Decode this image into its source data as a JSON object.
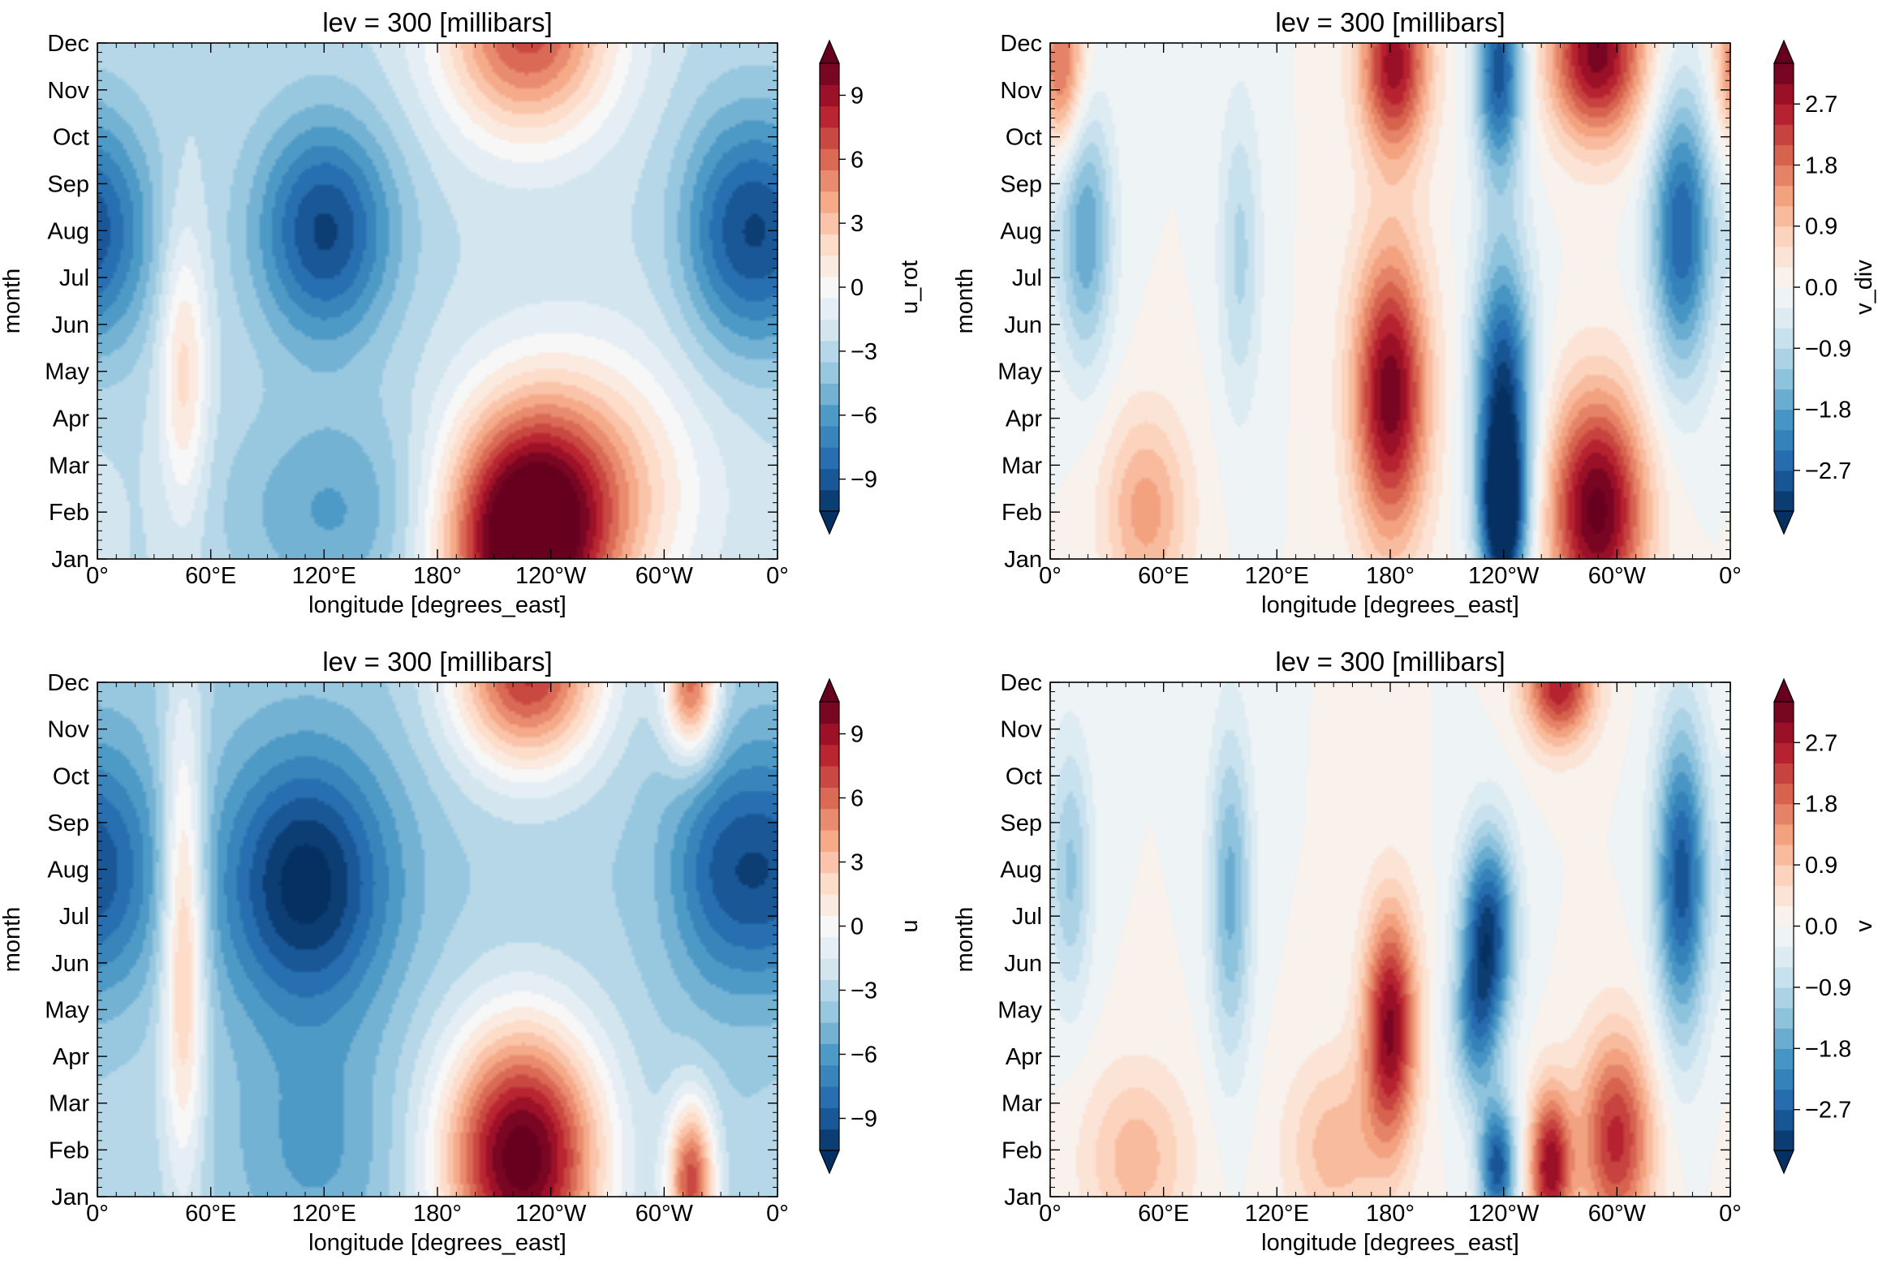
{
  "chart_data": [
    {
      "type": "heatmap",
      "subtype": "filled-contour",
      "title": "lev = 300 [millibars]",
      "xlabel": "longitude [degrees_east]",
      "ylabel": "month",
      "xticks": [
        "0°",
        "60°E",
        "120°E",
        "180°",
        "120°W",
        "60°W",
        "0°"
      ],
      "yticks": [
        "Jan",
        "Feb",
        "Mar",
        "Apr",
        "May",
        "Jun",
        "Jul",
        "Aug",
        "Sep",
        "Oct",
        "Nov",
        "Dec"
      ],
      "colorbar": {
        "label": "u_rot",
        "ticks": [
          "9",
          "6",
          "3",
          "0",
          "−3",
          "−6",
          "−9"
        ],
        "range": [
          -10.5,
          10.5
        ],
        "levels": 21,
        "cmap": "RdBu_r",
        "extend": "both"
      },
      "features": [
        {
          "lon": 120,
          "month": 8,
          "value": -10.5,
          "spread_lon": 26,
          "spread_month": 1.7
        },
        {
          "lon": 5,
          "month": 8,
          "value": -7.5,
          "spread_lon": 20,
          "spread_month": 1.8
        },
        {
          "lon": 335,
          "month": 8,
          "value": -8,
          "spread_lon": 20,
          "spread_month": 1.8
        },
        {
          "lon": 125,
          "month": 2,
          "value": -6,
          "spread_lon": 40,
          "spread_month": 1.6
        },
        {
          "lon": 45,
          "month": 5,
          "value": 2.5,
          "spread_lon": 9,
          "spread_month": 2.2
        },
        {
          "lon": 225,
          "month": 1.3,
          "value": 12.5,
          "spread_lon": 30,
          "spread_month": 1.9
        },
        {
          "lon": 260,
          "month": 2.5,
          "value": 4,
          "spread_lon": 40,
          "spread_month": 2
        },
        {
          "lon": 228,
          "month": 12.3,
          "value": 8,
          "spread_lon": 32,
          "spread_month": 1.6
        }
      ],
      "background": -2.5
    },
    {
      "type": "heatmap",
      "subtype": "filled-contour",
      "title": "lev = 300 [millibars]",
      "xlabel": "longitude [degrees_east]",
      "ylabel": "month",
      "xticks": [
        "0°",
        "60°E",
        "120°E",
        "180°",
        "120°W",
        "60°W",
        "0°"
      ],
      "yticks": [
        "Jan",
        "Feb",
        "Mar",
        "Apr",
        "May",
        "Jun",
        "Jul",
        "Aug",
        "Sep",
        "Oct",
        "Nov",
        "Dec"
      ],
      "colorbar": {
        "label": "v_div",
        "ticks": [
          "2.7",
          "1.8",
          "0.9",
          "0.0",
          "−0.9",
          "−1.8",
          "−2.7"
        ],
        "range": [
          -3.3,
          3.3
        ],
        "levels": 22,
        "cmap": "RdBu_r",
        "extend": "both"
      },
      "features": [
        {
          "lon": 180,
          "month": 4.5,
          "value": 3.6,
          "spread_lon": 14,
          "spread_month": 2.2
        },
        {
          "lon": 240,
          "month": 4.2,
          "value": -3.6,
          "spread_lon": 11,
          "spread_month": 2.4
        },
        {
          "lon": 238,
          "month": 11.5,
          "value": -3.2,
          "spread_lon": 9,
          "spread_month": 1.6
        },
        {
          "lon": 290,
          "month": 2,
          "value": 3.8,
          "spread_lon": 18,
          "spread_month": 1.8
        },
        {
          "lon": 290,
          "month": 11.8,
          "value": 3.5,
          "spread_lon": 18,
          "spread_month": 1.3
        },
        {
          "lon": 182,
          "month": 11.6,
          "value": 3.2,
          "spread_lon": 13,
          "spread_month": 1.4
        },
        {
          "lon": 335,
          "month": 8,
          "value": -3,
          "spread_lon": 12,
          "spread_month": 2.2
        },
        {
          "lon": 18,
          "month": 8,
          "value": -2,
          "spread_lon": 10,
          "spread_month": 2
        },
        {
          "lon": 100,
          "month": 7.5,
          "value": -1.1,
          "spread_lon": 8,
          "spread_month": 2.4
        },
        {
          "lon": 50,
          "month": 2,
          "value": 1.5,
          "spread_lon": 16,
          "spread_month": 1.5
        },
        {
          "lon": 5,
          "month": 11.5,
          "value": 2.2,
          "spread_lon": 9,
          "spread_month": 1.3
        },
        {
          "lon": 240,
          "month": 1.8,
          "value": -3.2,
          "spread_lon": 8,
          "spread_month": 1.2
        }
      ],
      "background": 0
    },
    {
      "type": "heatmap",
      "subtype": "filled-contour",
      "title": "lev = 300 [millibars]",
      "xlabel": "longitude [degrees_east]",
      "ylabel": "month",
      "xticks": [
        "0°",
        "60°E",
        "120°E",
        "180°",
        "120°W",
        "60°W",
        "0°"
      ],
      "yticks": [
        "Jan",
        "Feb",
        "Mar",
        "Apr",
        "May",
        "Jun",
        "Jul",
        "Aug",
        "Sep",
        "Oct",
        "Nov",
        "Dec"
      ],
      "colorbar": {
        "label": "u",
        "ticks": [
          "9",
          "6",
          "3",
          "0",
          "−3",
          "−6",
          "−9"
        ],
        "range": [
          -10.5,
          10.5
        ],
        "levels": 21,
        "cmap": "RdBu_r",
        "extend": "both"
      },
      "features": [
        {
          "lon": 110,
          "month": 7.7,
          "value": -12,
          "spread_lon": 32,
          "spread_month": 2
        },
        {
          "lon": 5,
          "month": 8,
          "value": -8.5,
          "spread_lon": 20,
          "spread_month": 1.9
        },
        {
          "lon": 330,
          "month": 8,
          "value": -8.5,
          "spread_lon": 20,
          "spread_month": 1.8
        },
        {
          "lon": 225,
          "month": 1.8,
          "value": 13,
          "spread_lon": 30,
          "spread_month": 2
        },
        {
          "lon": 228,
          "month": 12.3,
          "value": 9,
          "spread_lon": 28,
          "spread_month": 1.5
        },
        {
          "lon": 315,
          "month": 1.3,
          "value": 8,
          "spread_lon": 9,
          "spread_month": 1.2
        },
        {
          "lon": 315,
          "month": 12,
          "value": 7,
          "spread_lon": 10,
          "spread_month": 1.1
        },
        {
          "lon": 45,
          "month": 6.5,
          "value": 4,
          "spread_lon": 8,
          "spread_month": 3.5
        },
        {
          "lon": 115,
          "month": 2,
          "value": -6,
          "spread_lon": 30,
          "spread_month": 1.7
        },
        {
          "lon": 20,
          "month": 3,
          "value": -3,
          "spread_lon": 25,
          "spread_month": 2
        }
      ],
      "background": -3.5
    },
    {
      "type": "heatmap",
      "subtype": "filled-contour",
      "title": "lev = 300 [millibars]",
      "xlabel": "longitude [degrees_east]",
      "ylabel": "month",
      "xticks": [
        "0°",
        "60°E",
        "120°E",
        "180°",
        "120°W",
        "60°W",
        "0°"
      ],
      "yticks": [
        "Jan",
        "Feb",
        "Mar",
        "Apr",
        "May",
        "Jun",
        "Jul",
        "Aug",
        "Sep",
        "Oct",
        "Nov",
        "Dec"
      ],
      "colorbar": {
        "label": "v",
        "ticks": [
          "2.7",
          "1.8",
          "0.9",
          "0.0",
          "−0.9",
          "−1.8",
          "−2.7"
        ],
        "range": [
          -3.3,
          3.3
        ],
        "levels": 22,
        "cmap": "RdBu_r",
        "extend": "both"
      },
      "features": [
        {
          "lon": 180,
          "month": 4.6,
          "value": 3.4,
          "spread_lon": 10,
          "spread_month": 1.8
        },
        {
          "lon": 232,
          "month": 6.7,
          "value": -3.4,
          "spread_lon": 10,
          "spread_month": 1.5
        },
        {
          "lon": 237,
          "month": 1.6,
          "value": -3.2,
          "spread_lon": 7,
          "spread_month": 1
        },
        {
          "lon": 225,
          "month": 4.5,
          "value": -1.8,
          "spread_lon": 9,
          "spread_month": 1.2
        },
        {
          "lon": 265,
          "month": 1.6,
          "value": 3.2,
          "spread_lon": 8,
          "spread_month": 1.2
        },
        {
          "lon": 300,
          "month": 2.2,
          "value": 2.8,
          "spread_lon": 14,
          "spread_month": 1.6
        },
        {
          "lon": 270,
          "month": 12,
          "value": 3,
          "spread_lon": 13,
          "spread_month": 0.9
        },
        {
          "lon": 335,
          "month": 7.8,
          "value": -3.2,
          "spread_lon": 10,
          "spread_month": 2.4
        },
        {
          "lon": 95,
          "month": 7.5,
          "value": -1.8,
          "spread_lon": 8,
          "spread_month": 2.5
        },
        {
          "lon": 10,
          "month": 8,
          "value": -1.4,
          "spread_lon": 8,
          "spread_month": 2
        },
        {
          "lon": 45,
          "month": 1.8,
          "value": 1.2,
          "spread_lon": 20,
          "spread_month": 1.4
        },
        {
          "lon": 150,
          "month": 2,
          "value": 1.2,
          "spread_lon": 18,
          "spread_month": 1.4
        }
      ],
      "background": 0
    }
  ]
}
